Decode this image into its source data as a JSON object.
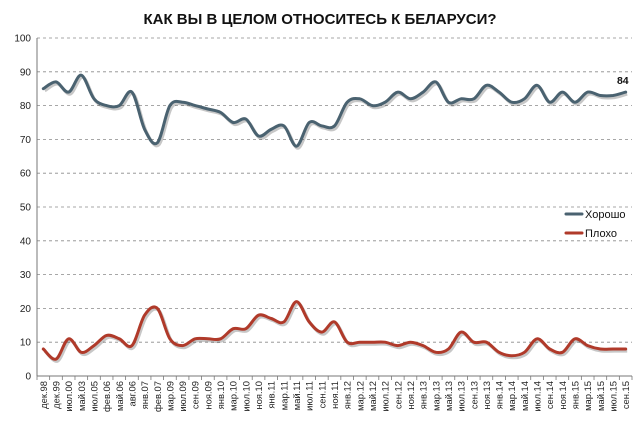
{
  "chart_data": {
    "type": "line",
    "title": "КАК ВЫ В ЦЕЛОМ ОТНОСИТЕСЬ К БЕЛАРУСИ?",
    "xlabel": "",
    "ylabel": "",
    "ylim": [
      0,
      100
    ],
    "y_ticks": [
      0,
      10,
      20,
      30,
      40,
      50,
      60,
      70,
      80,
      90,
      100
    ],
    "grid": "horizontal dashed",
    "legend_position": "right-middle",
    "x_tick_labels": [
      "дек.98",
      "дек.99",
      "июл.00",
      "май.03",
      "июл.05",
      "фев.06",
      "май.06",
      "авг.06",
      "янв.07",
      "фев.07",
      "мар.09",
      "июл.09",
      "сен.09",
      "ноя.09",
      "янв.10",
      "мар.10",
      "июл.10",
      "ноя.10",
      "янв.11",
      "мар.11",
      "май.11",
      "июл.11",
      "сен.11",
      "ноя.11",
      "янв.12",
      "мар.12",
      "май.12",
      "июл.12",
      "сен.12",
      "ноя.12",
      "янв.13",
      "мар.13",
      "май.13",
      "июл.13",
      "сен.13",
      "ноя.13",
      "янв.14",
      "мар.14",
      "май.14",
      "июл.14",
      "сен.14",
      "ноя.14",
      "янв.15",
      "мар.15",
      "май.15",
      "июл.15",
      "сен.15"
    ],
    "series": [
      {
        "name": "Хорошо",
        "color": "#4a6270",
        "values": [
          85,
          87,
          84,
          89,
          82,
          80,
          80,
          84,
          73,
          69,
          80,
          81,
          80,
          79,
          78,
          75,
          76,
          71,
          73,
          74,
          68,
          75,
          74,
          74,
          81,
          82,
          80,
          81,
          84,
          82,
          84,
          87,
          81,
          82,
          82,
          86,
          84,
          81,
          82,
          86,
          81,
          84,
          81,
          84,
          83,
          83,
          84
        ],
        "end_label": "84"
      },
      {
        "name": "Плохо",
        "color": "#b03a2a",
        "values": [
          8,
          5,
          11,
          7,
          9,
          12,
          11,
          9,
          18,
          20,
          11,
          9,
          11,
          11,
          11,
          14,
          14,
          18,
          17,
          16,
          22,
          16,
          13,
          16,
          10,
          10,
          10,
          10,
          9,
          10,
          9,
          7,
          8,
          13,
          10,
          10,
          7,
          6,
          7,
          11,
          8,
          7,
          11,
          9,
          8,
          8,
          8
        ]
      }
    ]
  }
}
